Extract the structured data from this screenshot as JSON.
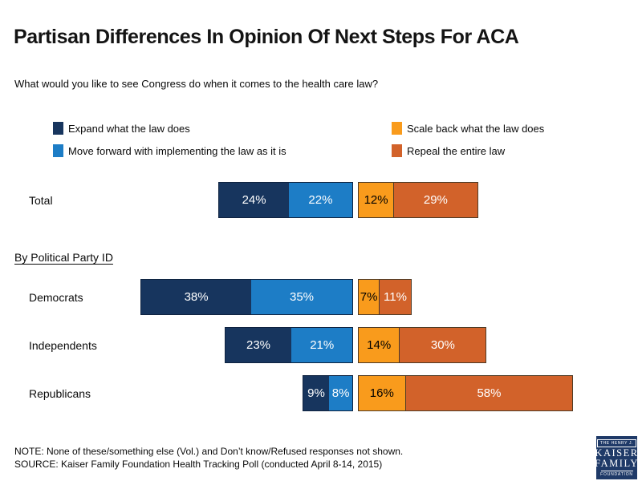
{
  "title": "Partisan Differences In Opinion Of Next Steps For ACA",
  "question": "What would you like to see Congress do when it comes to the health care law?",
  "section_label": "By Political Party ID",
  "note": "NOTE: None of these/something else (Vol.) and Don’t know/Refused responses not shown.",
  "source": "SOURCE: Kaiser Family Foundation Health Tracking Poll (conducted April 8-14, 2015)",
  "colors": {
    "expand": "#17355e",
    "move_forward": "#1d7dc6",
    "scale_back": "#f99b1c",
    "repeal": "#d2622a",
    "left_group_border": "#0f2340",
    "right_group_border": "#4e3b26",
    "logo_bg": "#1f3a68"
  },
  "legend": [
    {
      "id": "expand",
      "label": "Expand what the law does",
      "color": "#17355e",
      "text_color": "#ffffff"
    },
    {
      "id": "move_forward",
      "label": "Move forward with implementing the law as it is",
      "color": "#1d7dc6",
      "text_color": "#ffffff"
    },
    {
      "id": "scale_back",
      "label": "Scale back what the law does",
      "color": "#f99b1c",
      "text_color": "#000000"
    },
    {
      "id": "repeal",
      "label": "Repeal the entire law",
      "color": "#d2622a",
      "text_color": "#ffffff"
    }
  ],
  "chart_data": {
    "type": "bar",
    "subtype": "diverging-stacked-horizontal",
    "unit": "percent",
    "title": "Partisan Differences In Opinion Of Next Steps For ACA",
    "categories": [
      "Total",
      "Democrats",
      "Independents",
      "Republicans"
    ],
    "series": [
      {
        "name": "Expand what the law does",
        "values": [
          24,
          38,
          23,
          9
        ]
      },
      {
        "name": "Move forward with implementing the law as it is",
        "values": [
          22,
          35,
          21,
          8
        ]
      },
      {
        "name": "Scale back what the law does",
        "values": [
          12,
          7,
          14,
          16
        ]
      },
      {
        "name": "Repeal the entire law",
        "values": [
          29,
          11,
          30,
          58
        ]
      }
    ],
    "data_labels": "inside segments, formatted as N%",
    "legend_position": "top",
    "axes": "none",
    "grid": false
  },
  "logo": {
    "line1": "THE HENRY J.",
    "line2": "KAISER",
    "line3": "FAMILY",
    "line4": "FOUNDATION"
  }
}
